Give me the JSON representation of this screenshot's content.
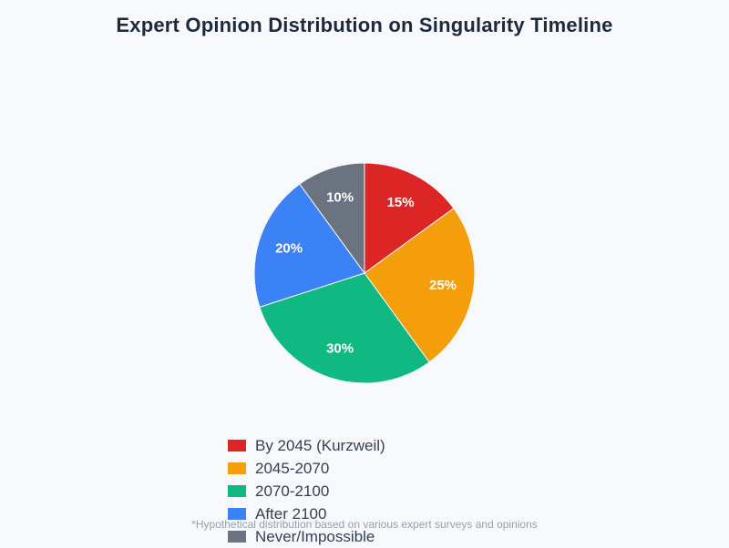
{
  "page": {
    "background": "#f8f9fc"
  },
  "title": {
    "text": "Expert Opinion Distribution on Singularity Timeline",
    "color": "#1e293b"
  },
  "footnote": {
    "text": "*Hypothetical distribution based on various expert surveys and opinions",
    "color": "#94a0b0"
  },
  "legend": {
    "text_color": "#334155"
  },
  "chart_data": {
    "type": "pie",
    "title": "Expert Opinion Distribution on Singularity Timeline",
    "categories": [
      "By 2045 (Kurzweil)",
      "2045-2070",
      "2070-2100",
      "After 2100",
      "Never/Impossible"
    ],
    "values": [
      15,
      25,
      30,
      20,
      10
    ],
    "slice_labels": [
      "15%",
      "25%",
      "30%",
      "20%",
      "10%"
    ],
    "colors": [
      "#dc2626",
      "#f59e0b",
      "#10b981",
      "#3b82f6",
      "#6b7280"
    ],
    "slice_label_color": "#ffffff",
    "start_angle": "12 o'clock",
    "direction": "clockwise",
    "legend_position": "bottom"
  }
}
